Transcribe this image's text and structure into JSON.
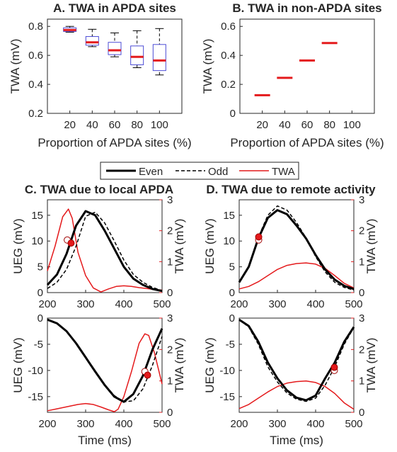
{
  "colors": {
    "even": "#000000",
    "odd": "#000000",
    "twa": "#e41a1c",
    "box": "#4b4bd6",
    "median": "#e41a1c",
    "axis": "#262626",
    "marker_fill": "#e41a1c",
    "marker_open": "#ffffff"
  },
  "legend": {
    "even": "Even",
    "odd": "Odd",
    "twa": "TWA"
  },
  "chart_data": [
    {
      "id": "A",
      "type": "box",
      "title": "A. TWA in APDA sites",
      "xlabel": "Proportion of APDA sites (%)",
      "ylabel": "TWA (mV)",
      "categories": [
        "20",
        "40",
        "60",
        "80",
        "100"
      ],
      "ylim": [
        0.2,
        0.85
      ],
      "yticks": [
        "0.2",
        "0.4",
        "0.6",
        "0.8"
      ],
      "boxes": [
        {
          "min": 0.76,
          "q1": 0.765,
          "median": 0.775,
          "q3": 0.79,
          "max": 0.8
        },
        {
          "min": 0.66,
          "q1": 0.67,
          "median": 0.69,
          "q3": 0.73,
          "max": 0.78
        },
        {
          "min": 0.59,
          "q1": 0.605,
          "median": 0.635,
          "q3": 0.69,
          "max": 0.755
        },
        {
          "min": 0.515,
          "q1": 0.535,
          "median": 0.59,
          "q3": 0.665,
          "max": 0.77
        },
        {
          "min": 0.465,
          "q1": 0.495,
          "median": 0.565,
          "q3": 0.675,
          "max": 0.785
        }
      ]
    },
    {
      "id": "B",
      "type": "bar",
      "title": "B. TWA in non-APDA sites",
      "xlabel": "Proportion of APDA sites (%)",
      "ylabel": "TWA (mV)",
      "categories": [
        "20",
        "40",
        "60",
        "80",
        "100"
      ],
      "values": [
        0.125,
        0.245,
        0.365,
        0.485,
        null
      ],
      "ylim": [
        0,
        0.65
      ],
      "yticks": [
        "0",
        "0.2",
        "0.4",
        "0.6"
      ]
    },
    {
      "id": "C",
      "type": "line",
      "title": "C. TWA due to local APDA",
      "xlim": [
        200,
        500
      ],
      "xticks": [
        "200",
        "300",
        "400",
        "500"
      ],
      "top": {
        "ylabel": "UEG (mV)",
        "ylabel2": "TWA (mV)",
        "ylim": [
          0,
          18
        ],
        "yticks": [
          "0",
          "5",
          "10",
          "15"
        ],
        "ylim2": [
          0,
          3
        ],
        "yticks2": [
          "0",
          "1",
          "2",
          "3"
        ],
        "even": {
          "x": [
            200,
            225,
            250,
            275,
            300,
            325,
            350,
            375,
            400,
            425,
            450,
            475,
            500
          ],
          "y": [
            1.5,
            3.5,
            7.5,
            13,
            15.8,
            15,
            12,
            8.5,
            5,
            2.7,
            1.5,
            0.7,
            0.3
          ]
        },
        "odd": {
          "x": [
            200,
            225,
            250,
            275,
            300,
            325,
            350,
            375,
            400,
            425,
            450,
            475,
            500
          ],
          "y": [
            0.8,
            2,
            4.5,
            9,
            14.8,
            15.6,
            13.5,
            10,
            6.3,
            3.5,
            2,
            1,
            0.4
          ]
        },
        "twa": {
          "x": [
            200,
            220,
            240,
            255,
            265,
            280,
            300,
            320,
            340,
            360,
            380,
            400,
            420,
            440,
            460,
            480,
            500
          ],
          "y": [
            0.7,
            1.5,
            2.45,
            2.7,
            2.4,
            1.3,
            0.55,
            0.15,
            0.02,
            0.12,
            0.2,
            0.22,
            0.2,
            0.16,
            0.13,
            0.1,
            0.08
          ]
        },
        "markers": [
          {
            "x": 252,
            "y": 10.2,
            "fill": "open"
          },
          {
            "x": 262,
            "y": 9.6,
            "fill": "solid"
          }
        ]
      },
      "bottom": {
        "xlabel": "Time (ms)",
        "ylabel": "UEG (mV)",
        "ylabel2": "TWA (mV)",
        "ylim": [
          -18,
          0
        ],
        "yticks": [
          "-15",
          "-10",
          "-5",
          "0"
        ],
        "ylim2": [
          0,
          3
        ],
        "yticks2": [
          "0",
          "1",
          "2",
          "3"
        ],
        "even": {
          "x": [
            200,
            225,
            250,
            275,
            300,
            325,
            350,
            375,
            400,
            425,
            450,
            475,
            500
          ],
          "y": [
            -0.3,
            -1,
            -2.5,
            -4.8,
            -7.5,
            -10.2,
            -12.8,
            -15,
            -16,
            -14.5,
            -11,
            -6,
            -2
          ]
        },
        "odd": {
          "x": [
            200,
            225,
            250,
            275,
            300,
            325,
            350,
            375,
            400,
            425,
            450,
            475,
            500
          ],
          "y": [
            -0.3,
            -1,
            -2.5,
            -4.8,
            -7.5,
            -10.2,
            -12.7,
            -14.8,
            -16,
            -15.8,
            -13.5,
            -9,
            -3.5
          ]
        },
        "twa": {
          "x": [
            200,
            220,
            240,
            260,
            280,
            300,
            320,
            340,
            360,
            375,
            385,
            400,
            420,
            440,
            455,
            465,
            480,
            490,
            500
          ],
          "y": [
            0.05,
            0.1,
            0.15,
            0.2,
            0.25,
            0.28,
            0.25,
            0.17,
            0.08,
            0.02,
            0.1,
            0.5,
            1.3,
            2.2,
            2.5,
            2.45,
            1.9,
            1.4,
            0.9
          ]
        },
        "markers": [
          {
            "x": 455,
            "y": -10.2,
            "fill": "open"
          },
          {
            "x": 462,
            "y": -10.9,
            "fill": "solid"
          }
        ]
      }
    },
    {
      "id": "D",
      "type": "line",
      "title": "D. TWA due to remote activity",
      "xlim": [
        200,
        500
      ],
      "xticks": [
        "200",
        "300",
        "400",
        "500"
      ],
      "top": {
        "ylabel": "UEG (mV)",
        "ylabel2": "TWA (mV)",
        "ylim": [
          0,
          18
        ],
        "yticks": [
          "0",
          "5",
          "10",
          "15"
        ],
        "ylim2": [
          0,
          3
        ],
        "yticks2": [
          "0",
          "1",
          "2",
          "3"
        ],
        "even": {
          "x": [
            200,
            225,
            250,
            275,
            300,
            325,
            350,
            375,
            400,
            425,
            450,
            475,
            500
          ],
          "y": [
            2,
            5,
            10.5,
            14.5,
            16,
            15.2,
            13,
            10.5,
            7.3,
            4.5,
            2.5,
            1.3,
            0.7
          ]
        },
        "odd": {
          "x": [
            200,
            225,
            250,
            275,
            300,
            325,
            350,
            375,
            400,
            425,
            450,
            475,
            500
          ],
          "y": [
            2,
            5.1,
            10.7,
            15,
            16.8,
            16,
            13.6,
            10.6,
            7,
            4,
            2,
            1,
            0.5
          ]
        },
        "twa": {
          "x": [
            200,
            225,
            250,
            275,
            300,
            325,
            350,
            375,
            400,
            425,
            450,
            475,
            500
          ],
          "y": [
            0.12,
            0.2,
            0.35,
            0.55,
            0.75,
            0.88,
            0.94,
            0.96,
            0.92,
            0.78,
            0.55,
            0.3,
            0.15
          ]
        },
        "markers": [
          {
            "x": 251,
            "y": 10.2,
            "fill": "open"
          },
          {
            "x": 251,
            "y": 10.8,
            "fill": "solid"
          }
        ]
      },
      "bottom": {
        "xlabel": "Time (ms)",
        "ylabel": "UEG (mV)",
        "ylabel2": "TWA (mV)",
        "ylim": [
          -18,
          0
        ],
        "yticks": [
          "-15",
          "-10",
          "-5",
          "0"
        ],
        "ylim2": [
          0,
          3
        ],
        "yticks2": [
          "0",
          "1",
          "2",
          "3"
        ],
        "even": {
          "x": [
            200,
            225,
            250,
            275,
            300,
            325,
            350,
            375,
            400,
            425,
            450,
            475,
            500
          ],
          "y": [
            -0.3,
            -1.5,
            -4.5,
            -8.5,
            -11.5,
            -13.8,
            -15.2,
            -15.7,
            -14.8,
            -11.5,
            -8.5,
            -4.5,
            -1.7
          ]
        },
        "odd": {
          "x": [
            200,
            225,
            250,
            275,
            300,
            325,
            350,
            375,
            400,
            425,
            450,
            475,
            500
          ],
          "y": [
            -0.3,
            -1.7,
            -5,
            -9.3,
            -12.2,
            -14.3,
            -15.5,
            -15.9,
            -15.3,
            -12.8,
            -9.3,
            -5,
            -1.8
          ]
        },
        "twa": {
          "x": [
            200,
            225,
            250,
            275,
            300,
            325,
            350,
            375,
            400,
            425,
            450,
            475,
            500
          ],
          "y": [
            0.12,
            0.25,
            0.45,
            0.65,
            0.82,
            0.93,
            0.98,
            1.0,
            0.95,
            0.82,
            0.6,
            0.3,
            0.1
          ]
        },
        "markers": [
          {
            "x": 449,
            "y": -10,
            "fill": "open"
          },
          {
            "x": 449,
            "y": -9.4,
            "fill": "solid"
          }
        ]
      }
    }
  ]
}
